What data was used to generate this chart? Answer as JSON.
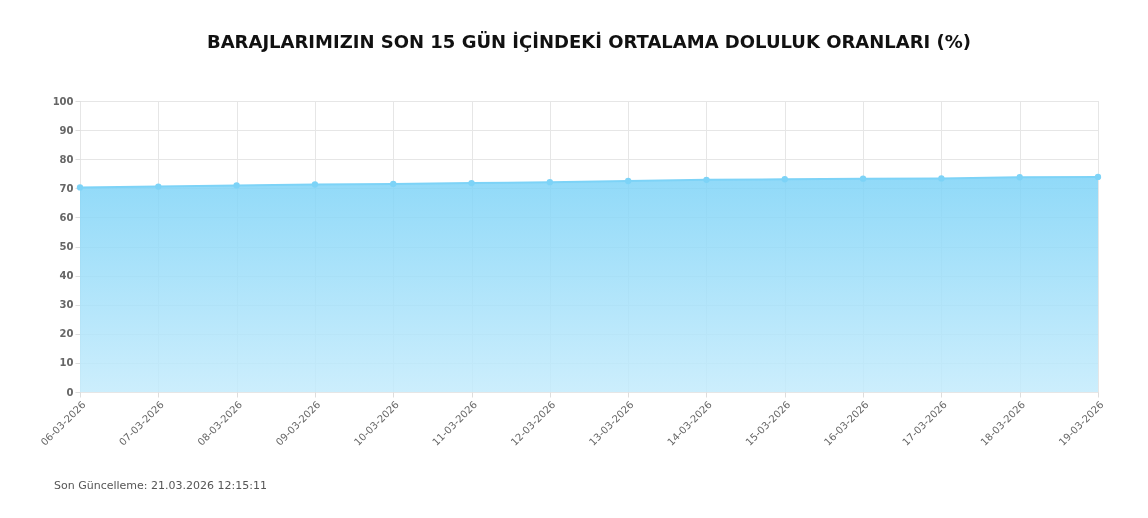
{
  "chart_data": {
    "type": "area",
    "title": "BARAJLARIMIZIN SON 15 GÜN İÇİNDEKİ ORTALAMA DOLULUK ORANLARI (%)",
    "categories": [
      "06-03-2026",
      "07-03-2026",
      "08-03-2026",
      "09-03-2026",
      "10-03-2026",
      "11-03-2026",
      "12-03-2026",
      "13-03-2026",
      "14-03-2026",
      "15-03-2026",
      "16-03-2026",
      "17-03-2026",
      "18-03-2026",
      "19-03-2026"
    ],
    "series": [
      {
        "color": "#7dd3f7",
        "values": [
          70.3,
          70.6,
          71.0,
          71.3,
          71.5,
          71.8,
          72.1,
          72.5,
          72.9,
          73.1,
          73.3,
          73.4,
          73.8,
          73.9
        ]
      }
    ],
    "ylim": [
      0,
      100
    ],
    "yticks": [
      0,
      10,
      20,
      30,
      40,
      50,
      60,
      70,
      80,
      90,
      100
    ],
    "grid": true,
    "marker": "circle",
    "line_style": "solid",
    "annotations": [
      "Son Güncelleme: 21.03.2026 12:15:11"
    ]
  }
}
